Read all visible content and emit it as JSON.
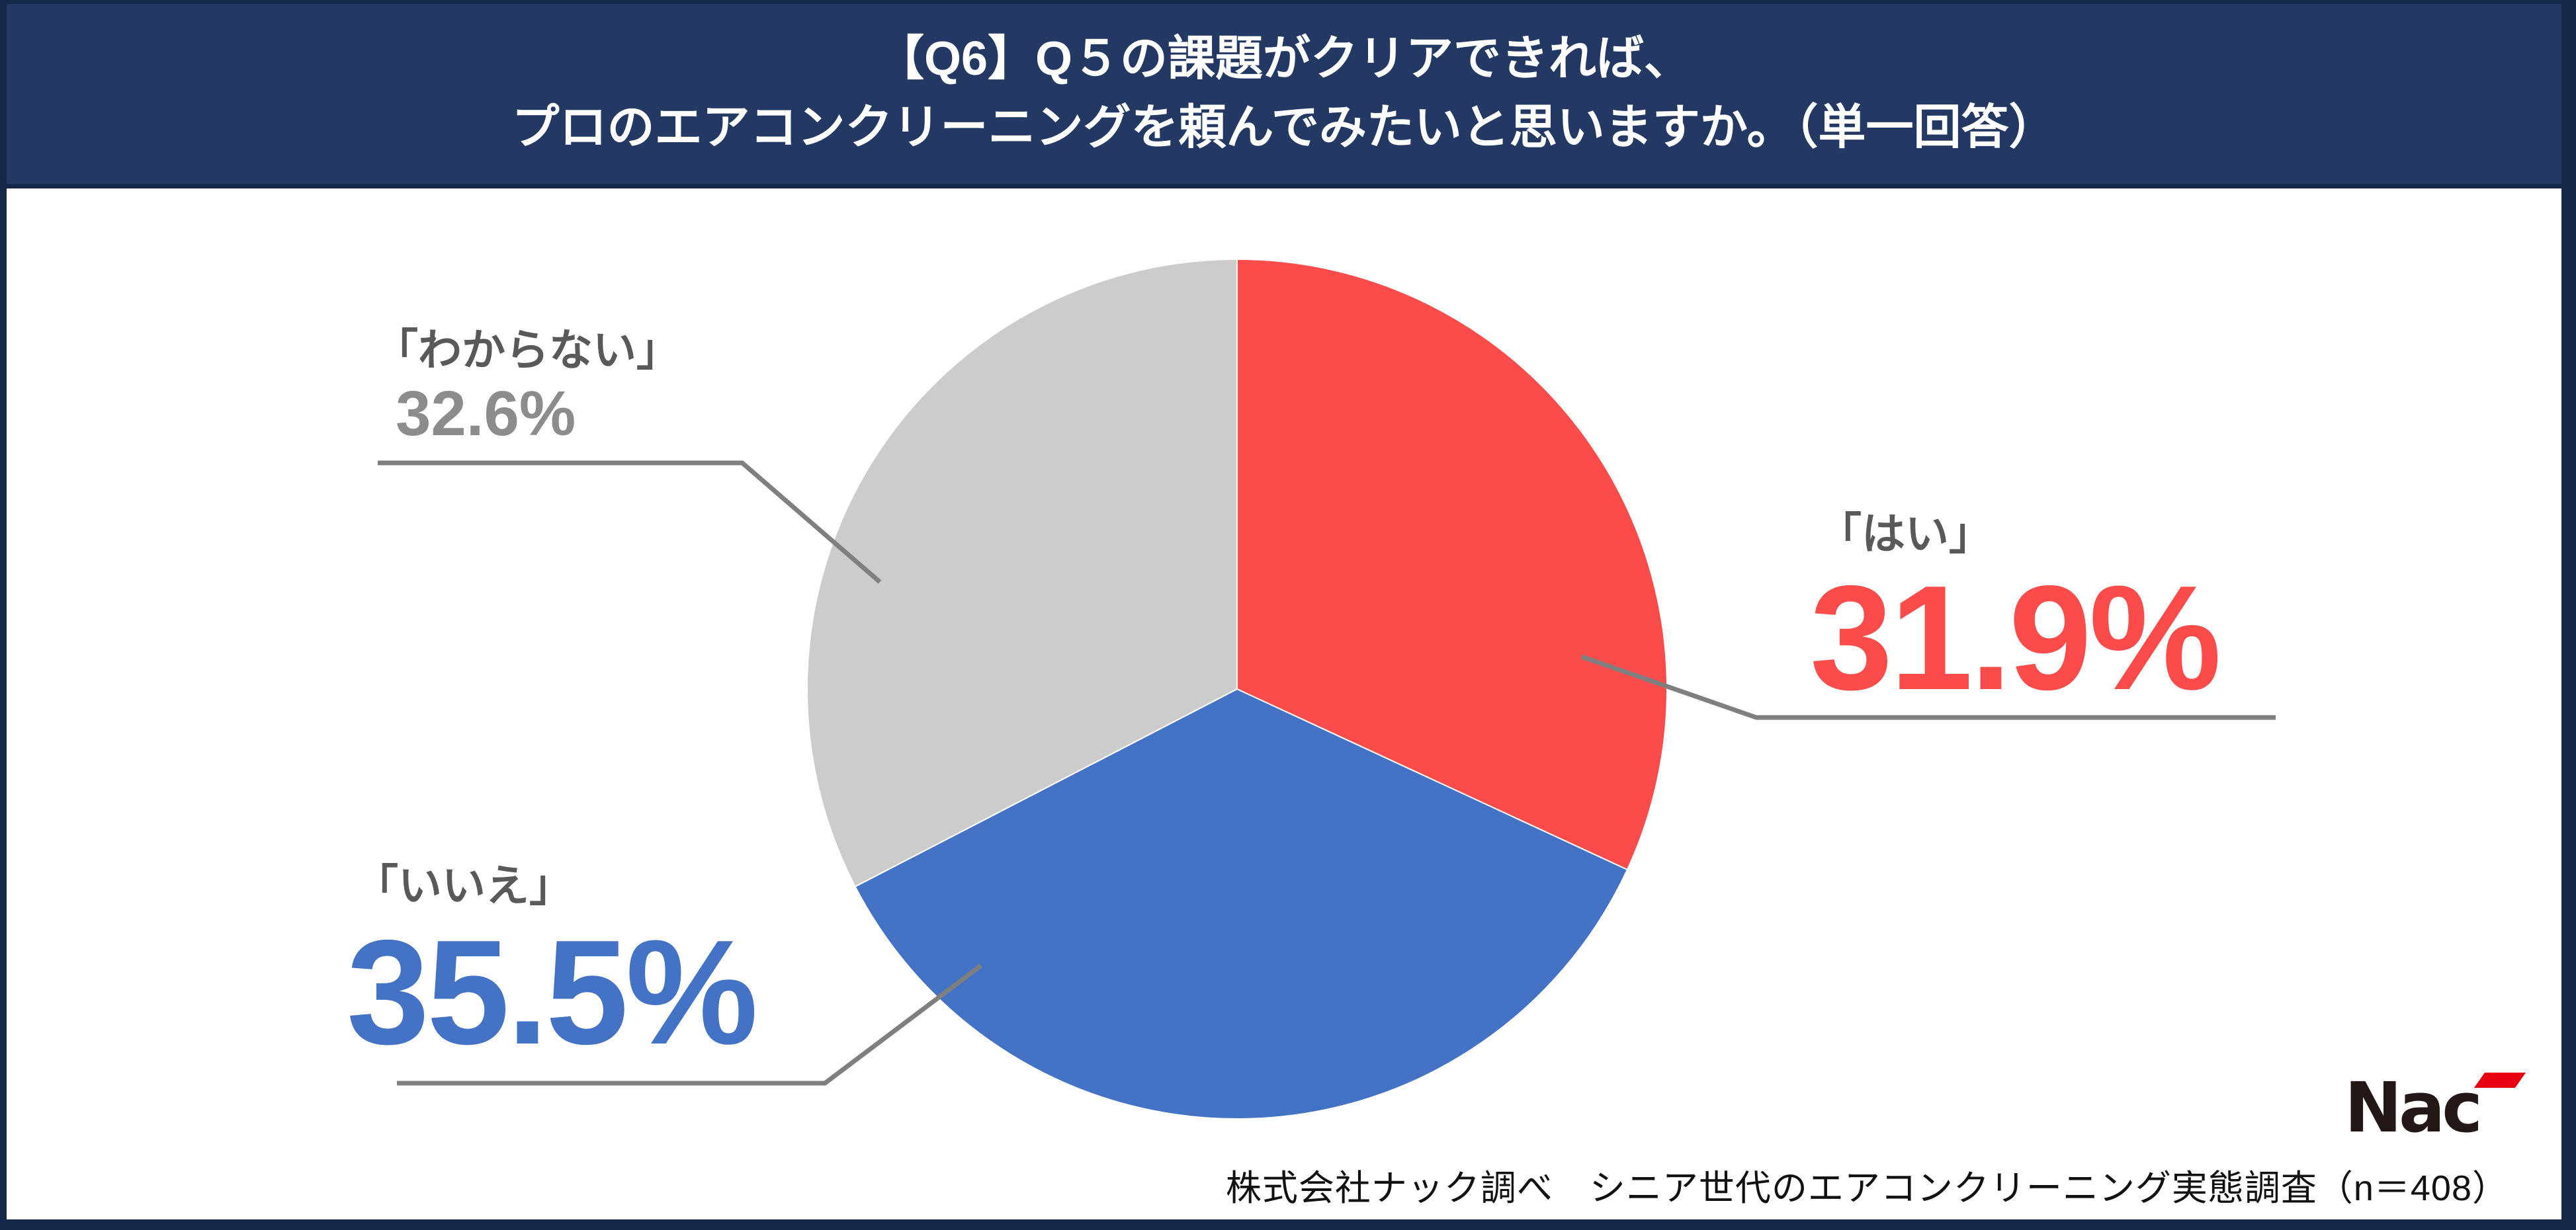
{
  "header": {
    "line1": "【Q6】Q５の課題がクリアできれば、",
    "line2": "プロのエアコンクリーニングを頼んでみたいと思いますか。（単一回答）"
  },
  "chart_data": {
    "type": "pie",
    "title": "【Q6】Q５の課題がクリアできれば、プロのエアコンクリーニングを頼んでみたいと思いますか。（単一回答）",
    "unit": "%",
    "start_angle_deg": 0,
    "direction": "clockwise",
    "legend_position": "callout-labels",
    "slices": [
      {
        "label": "「はい」",
        "value": 31.9,
        "color": "#FB4B4B"
      },
      {
        "label": "「いいえ」",
        "value": 35.5,
        "color": "#4472C4"
      },
      {
        "label": "「わからない」",
        "value": 32.6,
        "color": "#CCCCCC"
      }
    ]
  },
  "callouts": {
    "hai": {
      "name": "「はい」",
      "pct": "31.9%"
    },
    "iie": {
      "name": "「いいえ」",
      "pct": "35.5%"
    },
    "wakaranai": {
      "name": "「わからない」",
      "pct": "32.6%"
    }
  },
  "footer": {
    "source": "株式会社ナック調べ　シニア世代のエアコンクリーニング実態調査（n＝408）",
    "logo_text": "Nac"
  },
  "colors": {
    "frame": "#152849",
    "header_bg": "#233862",
    "header_text": "#FFFFFF",
    "label_text": "#595959",
    "pct_gray": "#8C8C8C",
    "leader_line": "#7F7F7F",
    "logo_red": "#E60012",
    "logo_black": "#231815"
  }
}
